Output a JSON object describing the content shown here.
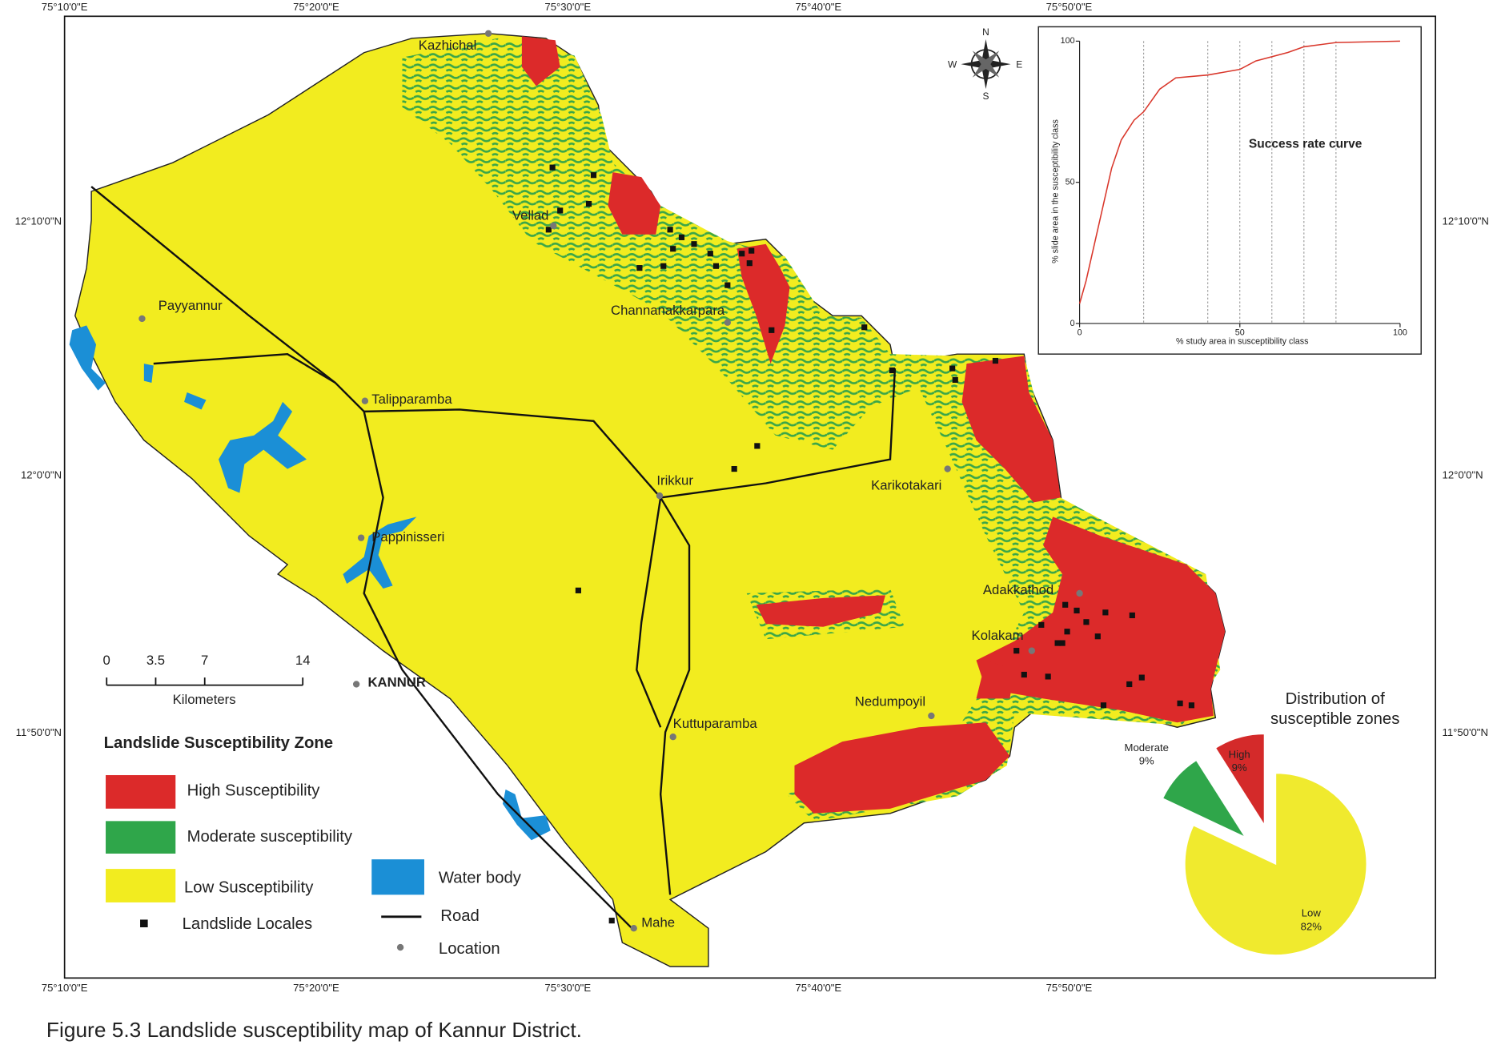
{
  "map": {
    "caption": "Figure 5.3 Landslide susceptibility map of Kannur District.",
    "top_coordinates": [
      "75°10'0\"E",
      "75°20'0\"E",
      "75°30'0\"E",
      "75°40'0\"E",
      "75°50'0\"E"
    ],
    "bottom_coordinates": [
      "75°10'0\"E",
      "75°20'0\"E",
      "75°30'0\"E",
      "75°40'0\"E",
      "75°50'0\"E"
    ],
    "left_coordinates": [
      "12°10'0\"N",
      "12°0'0\"N",
      "11°50'0\"N"
    ],
    "right_coordinates": [
      "12°10'0\"N",
      "12°0'0\"N",
      "11°50'0\"N"
    ],
    "compass": {
      "N": "N",
      "S": "S",
      "E": "E",
      "W": "W"
    },
    "places": [
      "Kazhichal",
      "Vellad",
      "Channanakkarpara",
      "Payyannur",
      "Talipparamba",
      "Irikkur",
      "Karikotakari",
      "Pappinisseri",
      "Adakkathod",
      "Kolakam",
      "KANNUR",
      "Nedumpoyil",
      "Kuttuparamba",
      "Mahe"
    ],
    "scale_bar": {
      "ticks": [
        0,
        3.5,
        7,
        14
      ],
      "unit": "Kilometers"
    },
    "legend": {
      "title": "Landslide Susceptibility Zone",
      "items": [
        "High Susceptibility",
        "Moderate susceptibility",
        "Low Susceptibility",
        "Landslide Locales",
        "Water body",
        "Road",
        "Location"
      ]
    }
  },
  "chart_data": [
    {
      "type": "line",
      "title": "Success rate curve",
      "x_label": "% study area in susceptibility class",
      "y_label": "% slide area in the susceptibility class",
      "x": [
        0,
        2,
        5,
        8,
        10,
        13,
        17,
        20,
        25,
        30,
        40,
        50,
        55,
        65,
        70,
        80,
        100
      ],
      "series": [
        {
          "color": "#d9372b",
          "values": [
            7,
            15,
            30,
            45,
            55,
            65,
            72,
            75,
            83,
            87,
            88,
            90,
            93,
            96,
            98,
            99.5,
            100
          ]
        }
      ],
      "xlim": [
        0,
        100
      ],
      "ylim": [
        0,
        100
      ],
      "xticks": [
        0,
        50,
        100
      ],
      "yticks": [
        0,
        50,
        100
      ],
      "x_gridlines": [
        20,
        40,
        50,
        60,
        70,
        80
      ]
    },
    {
      "type": "pie",
      "title": [
        "Distribution of",
        "susceptible zones"
      ],
      "categories": [
        "High",
        "Moderate",
        "Low"
      ],
      "values": [
        9,
        9,
        82
      ],
      "value_labels": [
        "9%",
        "9%",
        "82%"
      ],
      "colors": [
        "#d42a2a",
        "#2fa64a",
        "#f0ea2e"
      ],
      "explode": [
        0.45,
        0.45,
        0
      ]
    }
  ]
}
